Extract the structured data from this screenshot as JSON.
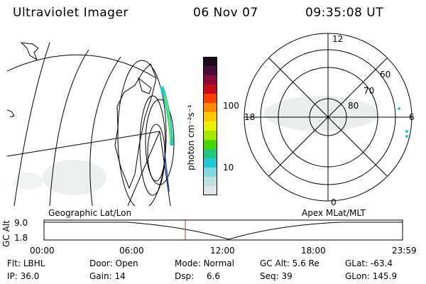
{
  "header": {
    "instrument": "Ultraviolet Imager",
    "date": "06 Nov 07",
    "time": "09:35:08 UT"
  },
  "colorbar": {
    "unit_label": "photon cm⁻²s⁻¹",
    "tick_labels": [
      "100",
      "10"
    ],
    "colors": [
      "#1a0a1a",
      "#4a0a3a",
      "#8a0a3a",
      "#c80a1a",
      "#ff3c00",
      "#ff8a00",
      "#ffc800",
      "#e8f000",
      "#a8e800",
      "#48d800",
      "#20c880",
      "#20c8d8",
      "#80d8e0",
      "#c0e0e0",
      "#dde6e6"
    ]
  },
  "polar": {
    "mlt_labels": {
      "top": "12",
      "left": "18",
      "right": "6",
      "bottom": "0"
    },
    "lat_labels": [
      "60",
      "70",
      "80"
    ]
  },
  "timeline": {
    "left_title": "Geographic Lat/Lon",
    "right_title": "Apex MLat/MLT",
    "axis_label": "GC Alt",
    "y_ticks": [
      "9.0",
      "1.8"
    ],
    "x_ticks": [
      "00:00",
      "06:00",
      "12:00",
      "18:00",
      "23:59"
    ]
  },
  "info": {
    "row1": [
      {
        "label": "Flt:",
        "value": "LBHL"
      },
      {
        "label": "Door:",
        "value": "Open"
      },
      {
        "label": "Mode:",
        "value": "Normal"
      },
      {
        "label": "GC Alt:",
        "value": "5.6 Re"
      },
      {
        "label": "GLat:",
        "value": "-63.4"
      }
    ],
    "row2": [
      {
        "label": "IP:",
        "value": "36.0"
      },
      {
        "label": "Gain:",
        "value": "14"
      },
      {
        "label": "Dsp:",
        "value": "6.6"
      },
      {
        "label": "Seq:",
        "value": "39"
      },
      {
        "label": "GLon:",
        "value": "145.9"
      }
    ]
  }
}
